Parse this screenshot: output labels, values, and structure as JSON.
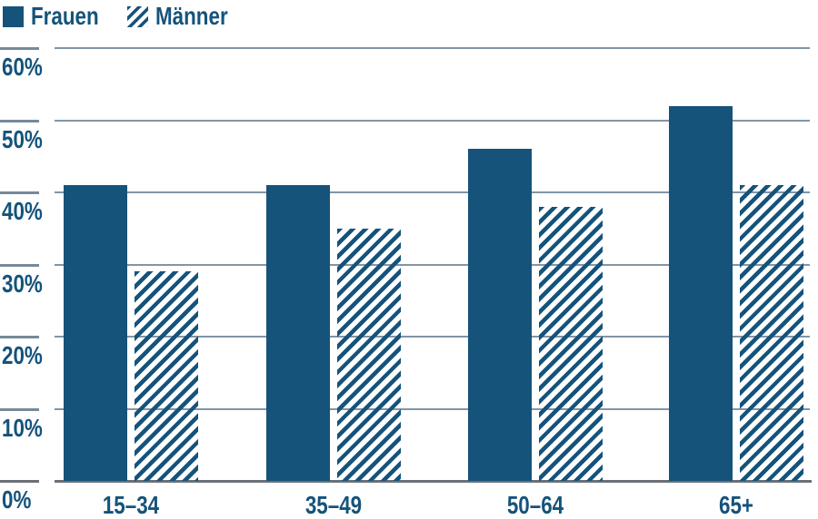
{
  "colors": {
    "primary": "#15537b",
    "gridline": "#8195a5",
    "tick_segment": "#76899a",
    "axis": "#6b7076"
  },
  "legend": {
    "position": "top-left",
    "items": [
      {
        "label": "Frauen",
        "swatch": "solid"
      },
      {
        "label": "Männer",
        "swatch": "hatched"
      }
    ]
  },
  "chart_data": {
    "type": "bar",
    "title": "",
    "xlabel": "",
    "ylabel": "",
    "categories": [
      "15–34",
      "35–49",
      "50–64",
      "65+"
    ],
    "series": [
      {
        "name": "Frauen",
        "style": "solid",
        "values": [
          41,
          41,
          46,
          52
        ]
      },
      {
        "name": "Männer",
        "style": "hatched",
        "values": [
          29,
          35,
          38,
          41
        ]
      }
    ],
    "unit": "%",
    "ylim": [
      0,
      60
    ],
    "grid": true,
    "y_ticks": [
      {
        "value": 0,
        "label": "0%"
      },
      {
        "value": 10,
        "label": "10%"
      },
      {
        "value": 20,
        "label": "20%"
      },
      {
        "value": 30,
        "label": "30%"
      },
      {
        "value": 40,
        "label": "40%"
      },
      {
        "value": 50,
        "label": "50%"
      },
      {
        "value": 60,
        "label": "60%"
      }
    ],
    "legend_position": "top-left"
  }
}
